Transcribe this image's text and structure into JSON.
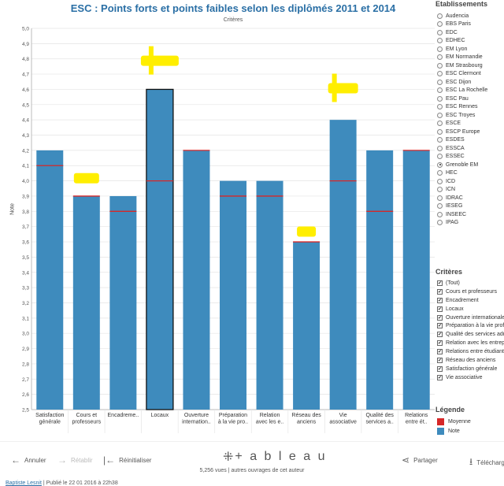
{
  "chart_data": {
    "type": "bar",
    "title": "ESC : Points forts et points faibles selon les diplômés 2011 et 2014",
    "subtitle": "Critères",
    "ylabel": "Note",
    "ylim": [
      2.5,
      5.0
    ],
    "yticks": [
      "2,5",
      "2,6",
      "2,7",
      "2,8",
      "2,9",
      "3,0",
      "3,1",
      "3,2",
      "3,3",
      "3,4",
      "3,5",
      "3,6",
      "3,7",
      "3,8",
      "3,9",
      "4,0",
      "4,1",
      "4,2",
      "4,3",
      "4,4",
      "4,5",
      "4,6",
      "4,7",
      "4,8",
      "4,9",
      "5,0"
    ],
    "ytick_values": [
      2.5,
      2.6,
      2.7,
      2.8,
      2.9,
      3.0,
      3.1,
      3.2,
      3.3,
      3.4,
      3.5,
      3.6,
      3.7,
      3.8,
      3.9,
      4.0,
      4.1,
      4.2,
      4.3,
      4.4,
      4.5,
      4.6,
      4.7,
      4.8,
      4.9,
      5.0
    ],
    "categories": [
      [
        "Satisfaction",
        "générale"
      ],
      [
        "Cours et",
        "professeurs"
      ],
      [
        "Encadreme.."
      ],
      [
        "Locaux"
      ],
      [
        "Ouverture",
        "internation.."
      ],
      [
        "Préparation",
        "à la vie pro.."
      ],
      [
        "Relation",
        "avec les e.."
      ],
      [
        "Réseau des",
        "anciens"
      ],
      [
        "Vie",
        "associative"
      ],
      [
        "Qualité des",
        "services a.."
      ],
      [
        "Relations",
        "entre ét.."
      ]
    ],
    "series": [
      {
        "name": "Note",
        "values": [
          4.2,
          3.9,
          3.9,
          4.6,
          4.2,
          4.0,
          4.0,
          3.6,
          4.4,
          4.2,
          4.2
        ]
      },
      {
        "name": "Moyenne",
        "values": [
          4.1,
          3.9,
          3.8,
          4.0,
          4.2,
          3.9,
          3.9,
          3.6,
          4.0,
          3.8,
          4.2
        ]
      }
    ],
    "highlighted_category_index": 3,
    "grid": true,
    "colors": {
      "bar": "#3e8bbd",
      "mean": "#d62728",
      "highlight_marker": "#ffee00",
      "grid": "#e4e4e4"
    },
    "annotations": [
      {
        "category_index": 1,
        "value": 4.02
      },
      {
        "category_index": 3,
        "value": 4.79
      },
      {
        "category_index": 7,
        "value": 3.67
      },
      {
        "category_index": 8,
        "value": 4.61
      }
    ]
  },
  "sidebar": {
    "etablissements_title": "Etablissements",
    "etablissements": [
      {
        "label": "Audencia",
        "selected": false
      },
      {
        "label": "EBS Paris",
        "selected": false
      },
      {
        "label": "EDC",
        "selected": false
      },
      {
        "label": "EDHEC",
        "selected": false
      },
      {
        "label": "EM Lyon",
        "selected": false
      },
      {
        "label": "EM Normandie",
        "selected": false
      },
      {
        "label": "EM Strasbourg",
        "selected": false
      },
      {
        "label": "ESC Clermont",
        "selected": false
      },
      {
        "label": "ESC Dijon",
        "selected": false
      },
      {
        "label": "ESC La Rochelle",
        "selected": false
      },
      {
        "label": "ESC Pau",
        "selected": false
      },
      {
        "label": "ESC Rennes",
        "selected": false
      },
      {
        "label": "ESC Troyes",
        "selected": false
      },
      {
        "label": "ESCE",
        "selected": false
      },
      {
        "label": "ESCP Europe",
        "selected": false
      },
      {
        "label": "ESDES",
        "selected": false
      },
      {
        "label": "ESSCA",
        "selected": false
      },
      {
        "label": "ESSEC",
        "selected": false
      },
      {
        "label": "Grenoble EM",
        "selected": true
      },
      {
        "label": "HEC",
        "selected": false
      },
      {
        "label": "ICD",
        "selected": false
      },
      {
        "label": "ICN",
        "selected": false
      },
      {
        "label": "IDRAC",
        "selected": false
      },
      {
        "label": "IESEG",
        "selected": false
      },
      {
        "label": "INSEEC",
        "selected": false
      },
      {
        "label": "IPAG",
        "selected": false
      }
    ],
    "criteres_title": "Critères",
    "criteres": [
      {
        "label": "(Tout)",
        "checked": true
      },
      {
        "label": "Cours et professeurs",
        "checked": true
      },
      {
        "label": "Encadrement",
        "checked": true
      },
      {
        "label": "Locaux",
        "checked": true
      },
      {
        "label": "Ouverture internationale",
        "checked": true
      },
      {
        "label": "Préparation à la vie professionnelle",
        "checked": true
      },
      {
        "label": "Qualité des services administratifs",
        "checked": true
      },
      {
        "label": "Relation avec les entreprises",
        "checked": true
      },
      {
        "label": "Relations entre étudiants",
        "checked": true
      },
      {
        "label": "Réseau des anciens",
        "checked": true
      },
      {
        "label": "Satisfaction générale",
        "checked": true
      },
      {
        "label": "Vie associative",
        "checked": true
      }
    ],
    "legende_title": "Légende",
    "legende": [
      {
        "label": "Moyenne",
        "color": "#d62728"
      },
      {
        "label": "Note",
        "color": "#3e8bbd"
      }
    ]
  },
  "toolbar": {
    "annuler": "Annuler",
    "retablir": "Rétablir",
    "reinitialiser": "Réinitialiser",
    "logo_text": "+ a b l e a u",
    "partager": "Partager",
    "telecharger": "Télécharger",
    "views_text": "5,256 vues | autres ouvrages de cet auteur"
  },
  "footer": {
    "author": "Baptiste Lesnit",
    "published": "| Publié le 22 01 2016 à 22h38"
  }
}
